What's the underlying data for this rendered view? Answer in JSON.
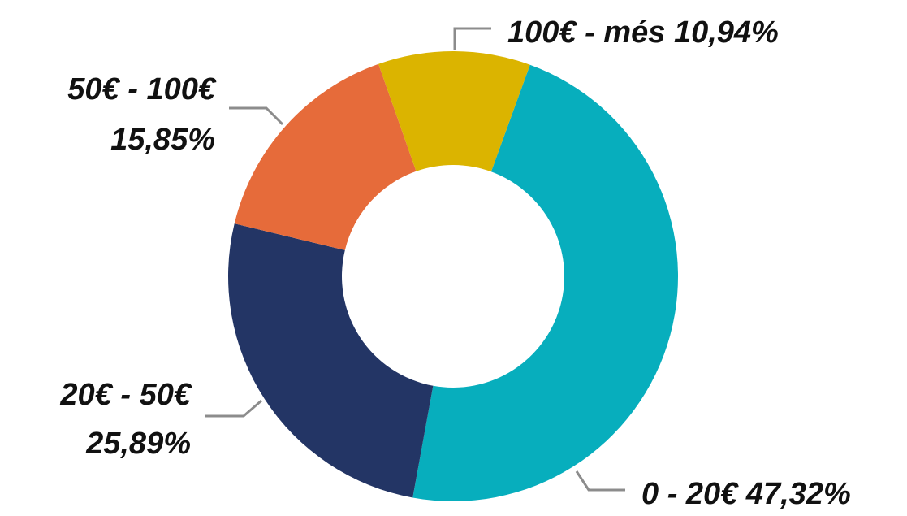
{
  "chart_data": {
    "type": "pie",
    "donut": true,
    "categories": [
      "0 - 20€",
      "20€ - 50€",
      "50€ - 100€",
      "100€ - més"
    ],
    "values": [
      47.32,
      25.89,
      15.85,
      10.94
    ],
    "value_labels": [
      "47,32%",
      "25,89%",
      "15,85%",
      "10,94%"
    ],
    "colors": [
      "#07aebd",
      "#233565",
      "#e66b3a",
      "#dbb400"
    ]
  }
}
